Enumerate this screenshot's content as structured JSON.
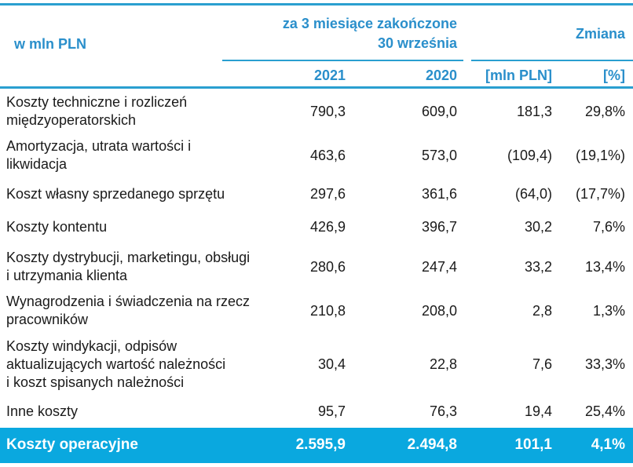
{
  "header": {
    "unit_label": "w mln PLN",
    "period_line1": "za 3 miesiące zakończone",
    "period_line2": "30 września",
    "change_label": "Zmiana",
    "col_2021": "2021",
    "col_2020": "2020",
    "col_change_abs": "[mln PLN]",
    "col_change_pct": "[%]"
  },
  "rows": [
    {
      "label_lines": [
        "Koszty techniczne i rozliczeń",
        "międzyoperatorskich"
      ],
      "v2021": "790,3",
      "v2020": "609,0",
      "change": "181,3",
      "pct": "29,8%"
    },
    {
      "label_lines": [
        "Amortyzacja, utrata wartości i",
        "likwidacja"
      ],
      "v2021": "463,6",
      "v2020": "573,0",
      "change": "(109,4)",
      "pct": "(19,1%)"
    },
    {
      "label_lines": [
        "Koszt własny sprzedanego sprzętu"
      ],
      "v2021": "297,6",
      "v2020": "361,6",
      "change": "(64,0)",
      "pct": "(17,7%)"
    },
    {
      "label_lines": [
        "Koszty kontentu"
      ],
      "v2021": "426,9",
      "v2020": "396,7",
      "change": "30,2",
      "pct": "7,6%"
    },
    {
      "label_lines": [
        "Koszty dystrybucji, marketingu, obsługi",
        "i utrzymania klienta"
      ],
      "v2021": "280,6",
      "v2020": "247,4",
      "change": "33,2",
      "pct": "13,4%"
    },
    {
      "label_lines": [
        "Wynagrodzenia i świadczenia na rzecz",
        "pracowników"
      ],
      "v2021": "210,8",
      "v2020": "208,0",
      "change": "2,8",
      "pct": "1,3%"
    },
    {
      "label_lines": [
        "Koszty windykacji, odpisów",
        "aktualizujących wartość należności",
        "i koszt spisanych należności"
      ],
      "v2021": "30,4",
      "v2020": "22,8",
      "change": "7,6",
      "pct": "33,3%"
    },
    {
      "label_lines": [
        "Inne koszty"
      ],
      "v2021": "95,7",
      "v2020": "76,3",
      "change": "19,4",
      "pct": "25,4%"
    }
  ],
  "total": {
    "label": "Koszty operacyjne",
    "v2021": "2.595,9",
    "v2020": "2.494,8",
    "change": "101,1",
    "pct": "4,1%"
  },
  "colors": {
    "accent": "#2a9fd0",
    "header_text": "#2a8fcb",
    "total_band": "#0aa8df"
  }
}
